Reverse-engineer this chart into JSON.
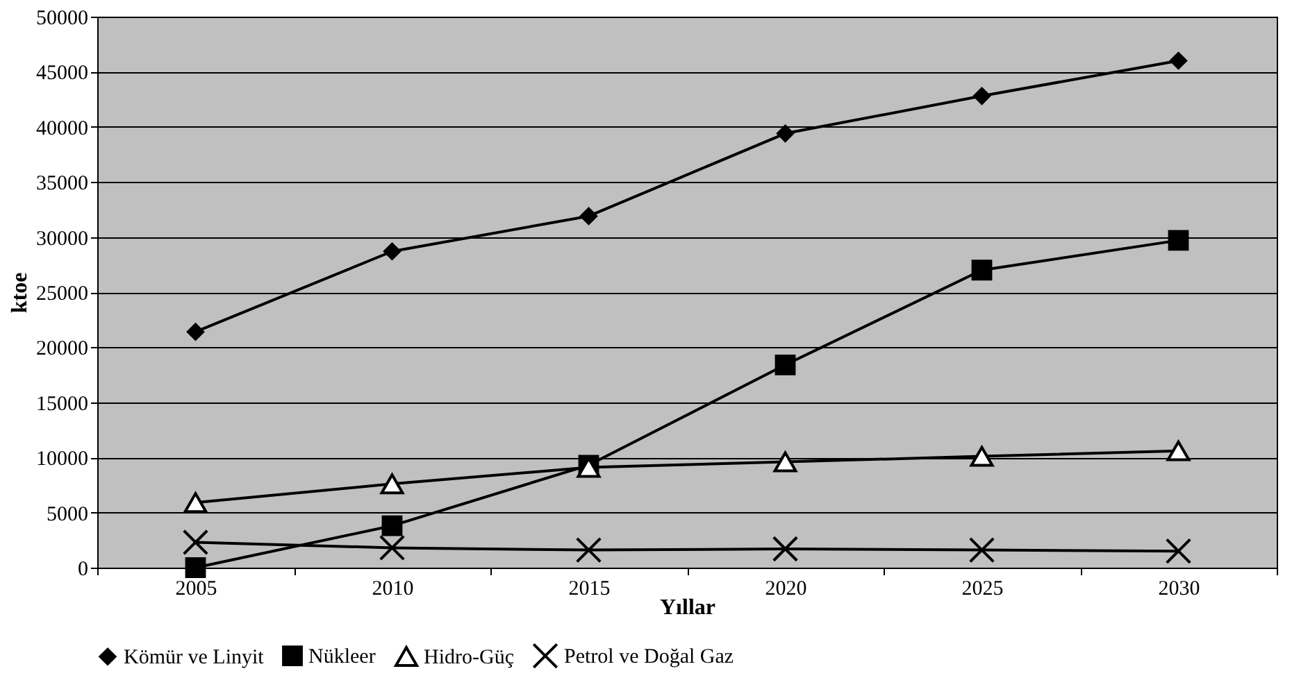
{
  "chart_data": {
    "type": "line",
    "xlabel": "Yıllar",
    "ylabel": "ktoe",
    "categories": [
      "2005",
      "2010",
      "2015",
      "2020",
      "2025",
      "2030"
    ],
    "ylim": [
      0,
      50000
    ],
    "yticks": [
      0,
      5000,
      10000,
      15000,
      20000,
      25000,
      30000,
      35000,
      40000,
      45000,
      50000
    ],
    "grid": "y",
    "legend": "bottom",
    "line_style": "solid",
    "series": [
      {
        "name": "Kömür ve Linyit",
        "color": "#000000",
        "marker": "diamond",
        "values": [
          21400,
          28700,
          31900,
          39400,
          42800,
          46000
        ]
      },
      {
        "name": "Nükleer",
        "color": "#000000",
        "marker": "square",
        "values": [
          0,
          3800,
          9300,
          18400,
          27000,
          29700
        ]
      },
      {
        "name": "Hidro-Güç",
        "color": "#000000",
        "marker": "triangle",
        "values": [
          5900,
          7600,
          9100,
          9600,
          10100,
          10600
        ]
      },
      {
        "name": "Petrol ve Doğal Gaz",
        "color": "#000000",
        "marker": "cross",
        "values": [
          2300,
          1800,
          1600,
          1700,
          1600,
          1500
        ]
      }
    ]
  }
}
